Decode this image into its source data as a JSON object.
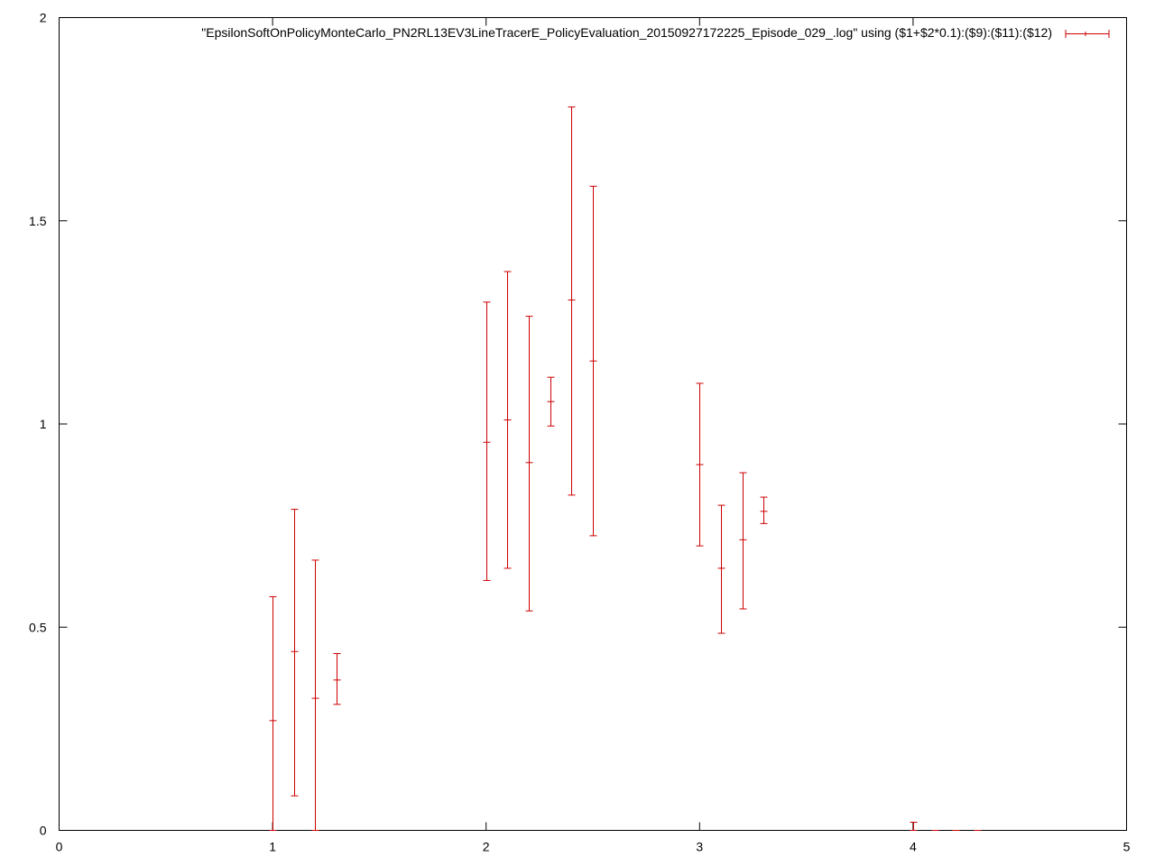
{
  "chart_data": {
    "type": "errorbar",
    "title": "",
    "xlabel": "",
    "ylabel": "",
    "xlim": [
      0,
      5
    ],
    "ylim": [
      0,
      2
    ],
    "x_ticks": [
      "0",
      "1",
      "2",
      "3",
      "4",
      "5"
    ],
    "y_ticks": [
      "0",
      "0.5",
      "1",
      "1.5",
      "2"
    ],
    "grid": false,
    "legend_position": "top-right",
    "series": [
      {
        "name": "\"EpsilonSoftOnPolicyMonteCarlo_PN2RL13EV3LineTracerE_PolicyEvaluation_20150927172225_Episode_029_.log\" using ($1+$2*0.1):($9):($11):($12)",
        "color": "#cc0000",
        "points": [
          {
            "x": 1.0,
            "y": 0.27,
            "low": 0.0,
            "high": 0.575
          },
          {
            "x": 1.1,
            "y": 0.44,
            "low": 0.085,
            "high": 0.79
          },
          {
            "x": 1.2,
            "y": 0.325,
            "low": 0.0,
            "high": 0.665
          },
          {
            "x": 1.3,
            "y": 0.37,
            "low": 0.31,
            "high": 0.435
          },
          {
            "x": 2.0,
            "y": 0.955,
            "low": 0.615,
            "high": 1.3
          },
          {
            "x": 2.1,
            "y": 1.01,
            "low": 0.645,
            "high": 1.375
          },
          {
            "x": 2.2,
            "y": 0.905,
            "low": 0.54,
            "high": 1.265
          },
          {
            "x": 2.3,
            "y": 1.055,
            "low": 0.995,
            "high": 1.115
          },
          {
            "x": 2.4,
            "y": 1.305,
            "low": 0.825,
            "high": 1.78
          },
          {
            "x": 2.5,
            "y": 1.155,
            "low": 0.725,
            "high": 1.585
          },
          {
            "x": 3.0,
            "y": 0.9,
            "low": 0.7,
            "high": 1.1
          },
          {
            "x": 3.1,
            "y": 0.645,
            "low": 0.485,
            "high": 0.8
          },
          {
            "x": 3.2,
            "y": 0.715,
            "low": 0.545,
            "high": 0.88
          },
          {
            "x": 3.3,
            "y": 0.785,
            "low": 0.755,
            "high": 0.82
          },
          {
            "x": 4.0,
            "y": 0.0,
            "low": 0.0,
            "high": 0.02
          },
          {
            "x": 4.1,
            "y": 0.0,
            "low": 0.0,
            "high": 0.0
          },
          {
            "x": 4.2,
            "y": 0.0,
            "low": 0.0,
            "high": 0.0
          },
          {
            "x": 4.3,
            "y": 0.0,
            "low": 0.0,
            "high": 0.0
          }
        ]
      }
    ]
  }
}
